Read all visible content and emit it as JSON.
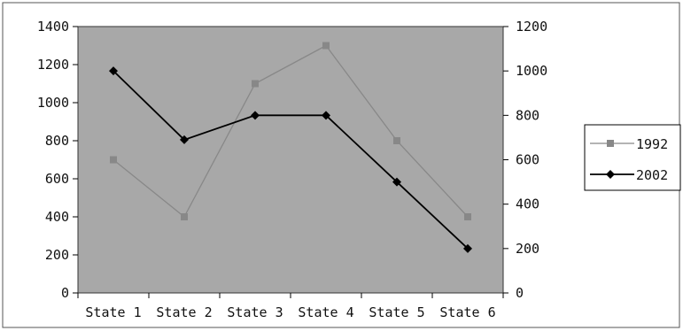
{
  "chart_data": {
    "type": "line",
    "title": "",
    "xlabel": "",
    "ylabel": "",
    "categories": [
      "State 1",
      "State 2",
      "State 3",
      "State 4",
      "State 5",
      "State 6"
    ],
    "series": [
      {
        "name": "1992",
        "axis": "left",
        "color": "#888888",
        "marker": "square",
        "values": [
          700,
          400,
          1100,
          1300,
          800,
          400
        ]
      },
      {
        "name": "2002",
        "axis": "right",
        "color": "#000000",
        "marker": "diamond",
        "values": [
          1000,
          690,
          800,
          800,
          500,
          200
        ]
      }
    ],
    "y_left": {
      "ylim": [
        0,
        1400
      ],
      "ticks": [
        0,
        200,
        400,
        600,
        800,
        1000,
        1200,
        1400
      ],
      "tick_labels": [
        "0",
        "200",
        "400",
        "600",
        "800",
        "1000",
        "1200",
        "1400"
      ]
    },
    "y_right": {
      "ylim": [
        0,
        1200
      ],
      "ticks": [
        0,
        200,
        400,
        600,
        800,
        1000,
        1200
      ],
      "tick_labels": [
        "0",
        "200",
        "400",
        "600",
        "800",
        "1000",
        "1200"
      ]
    },
    "grid": false,
    "legend": "right",
    "plot_background": "#a8a8a8"
  }
}
